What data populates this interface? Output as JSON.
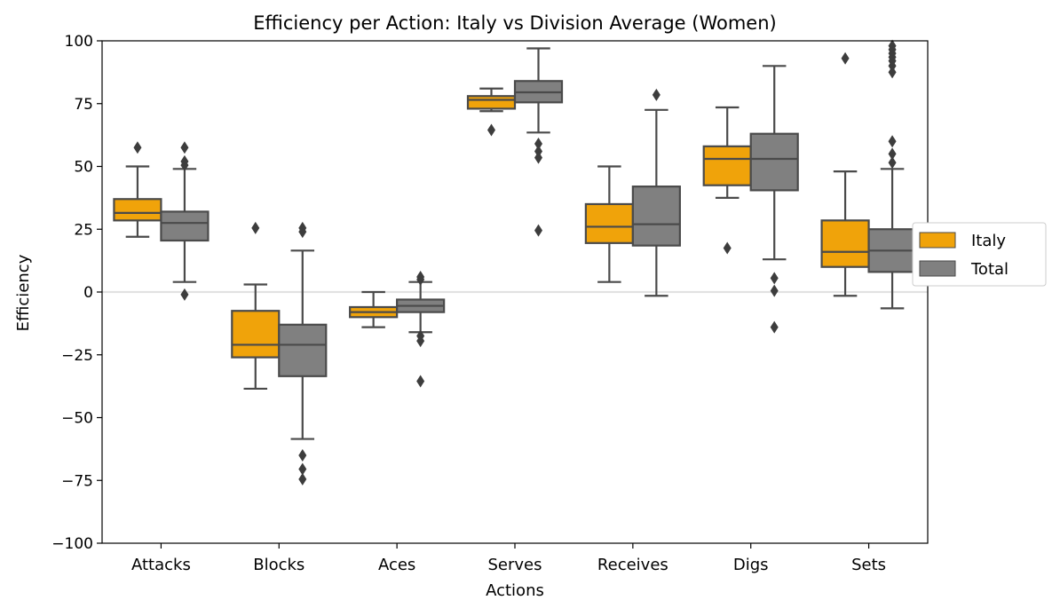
{
  "chart_data": {
    "type": "box",
    "title": "Efficiency per Action: Italy vs Division Average (Women)",
    "xlabel": "Actions",
    "ylabel": "Efficiency",
    "ylim": [
      -100,
      100
    ],
    "yticks": [
      -100,
      -75,
      -50,
      -25,
      0,
      25,
      50,
      75,
      100
    ],
    "ytick_labels": [
      "−100",
      "−75",
      "−50",
      "−25",
      "0",
      "25",
      "50",
      "75",
      "100"
    ],
    "categories": [
      "Attacks",
      "Blocks",
      "Aces",
      "Serves",
      "Receives",
      "Digs",
      "Sets"
    ],
    "reference_line": 0,
    "legend": {
      "placement": "right"
    },
    "series": [
      {
        "name": "Italy",
        "color": "#f0a30a",
        "boxes": [
          {
            "whislo": 22,
            "q1": 28.5,
            "med": 31.5,
            "q3": 37,
            "whishi": 50,
            "fliers": [
              57.5
            ]
          },
          {
            "whislo": -38.5,
            "q1": -26,
            "med": -21,
            "q3": -7.5,
            "whishi": 3,
            "fliers": [
              25.5
            ]
          },
          {
            "whislo": -14,
            "q1": -10,
            "med": -8,
            "q3": -6,
            "whishi": 0,
            "fliers": []
          },
          {
            "whislo": 72,
            "q1": 73,
            "med": 76.5,
            "q3": 78,
            "whishi": 81,
            "fliers": [
              64.5
            ]
          },
          {
            "whislo": 4,
            "q1": 19.5,
            "med": 26,
            "q3": 35,
            "whishi": 50,
            "fliers": []
          },
          {
            "whislo": 37.5,
            "q1": 42.5,
            "med": 53,
            "q3": 58,
            "whishi": 73.5,
            "fliers": [
              17.5
            ]
          },
          {
            "whislo": -1.5,
            "q1": 10,
            "med": 16,
            "q3": 28.5,
            "whishi": 48,
            "fliers": [
              93
            ]
          }
        ]
      },
      {
        "name": "Total",
        "color": "#808080",
        "boxes": [
          {
            "whislo": 4,
            "q1": 20.5,
            "med": 27.5,
            "q3": 32,
            "whishi": 49,
            "fliers": [
              57.5,
              52,
              50.5,
              -1
            ]
          },
          {
            "whislo": -58.5,
            "q1": -33.5,
            "med": -21,
            "q3": -13,
            "whishi": 16.5,
            "fliers": [
              25.5,
              24,
              -65,
              -70.5,
              -74.5
            ]
          },
          {
            "whislo": -16,
            "q1": -8,
            "med": -5.5,
            "q3": -3,
            "whishi": 4,
            "fliers": [
              6,
              5,
              -17.5,
              -19.5,
              -35.5
            ]
          },
          {
            "whislo": 63.5,
            "q1": 75.5,
            "med": 79.5,
            "q3": 84,
            "whishi": 97,
            "fliers": [
              59,
              56,
              53.5,
              24.5
            ]
          },
          {
            "whislo": -1.5,
            "q1": 18.5,
            "med": 27,
            "q3": 42,
            "whishi": 72.5,
            "fliers": [
              78.5
            ]
          },
          {
            "whislo": 13,
            "q1": 40.5,
            "med": 53,
            "q3": 63,
            "whishi": 90,
            "fliers": [
              5.5,
              0.5,
              -14
            ]
          },
          {
            "whislo": -6.5,
            "q1": 8,
            "med": 16.5,
            "q3": 25,
            "whishi": 49,
            "fliers": [
              98,
              96.5,
              95,
              93.5,
              92,
              90,
              87.5,
              60,
              55,
              51.5
            ]
          }
        ]
      }
    ]
  }
}
